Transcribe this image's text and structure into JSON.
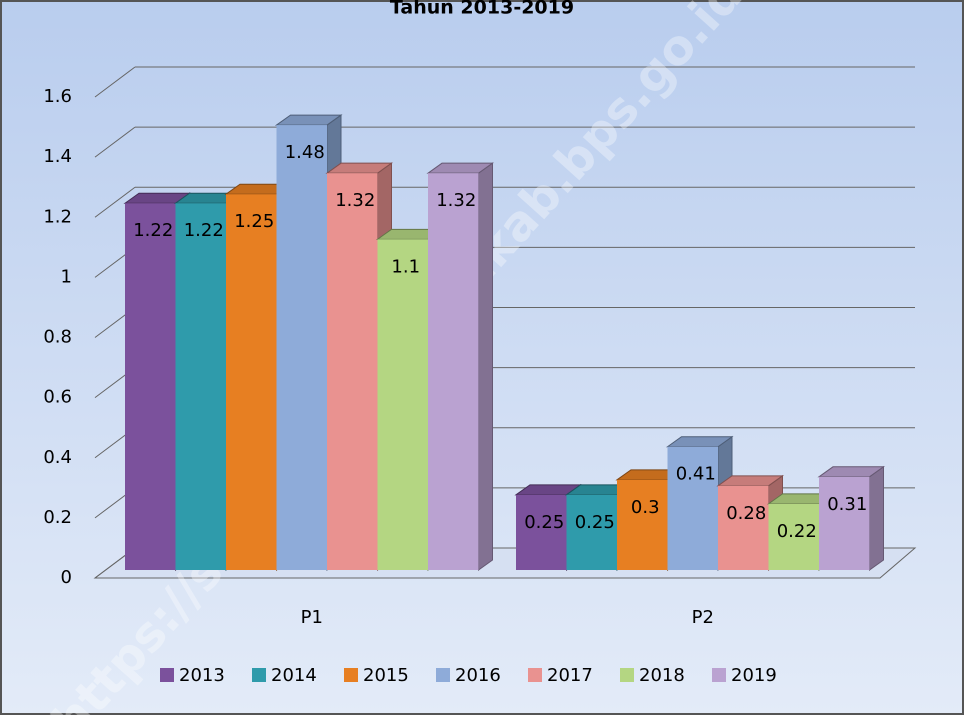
{
  "chart_data": {
    "type": "bar3d",
    "title": "Tahun 2013-2019",
    "watermark": "https://serdangbedagaikab.bps.go.id",
    "categories": [
      "P1",
      "P2"
    ],
    "series": [
      {
        "name": "2013",
        "color": "#7b519c",
        "values": [
          1.22,
          0.25
        ]
      },
      {
        "name": "2014",
        "color": "#2f9bab",
        "values": [
          1.22,
          0.25
        ]
      },
      {
        "name": "2015",
        "color": "#e77f22",
        "values": [
          1.25,
          0.3
        ]
      },
      {
        "name": "2016",
        "color": "#8eabd9",
        "values": [
          1.48,
          0.41
        ]
      },
      {
        "name": "2017",
        "color": "#e99290",
        "values": [
          1.32,
          0.28
        ]
      },
      {
        "name": "2018",
        "color": "#b4d682",
        "values": [
          1.1,
          0.22
        ]
      },
      {
        "name": "2019",
        "color": "#baa2d1",
        "values": [
          1.32,
          0.31
        ]
      }
    ],
    "ylim": [
      0,
      1.6
    ],
    "yticks": [
      0,
      0.2,
      0.4,
      0.6,
      0.8,
      1,
      1.2,
      1.4,
      1.6
    ],
    "grid": true
  }
}
